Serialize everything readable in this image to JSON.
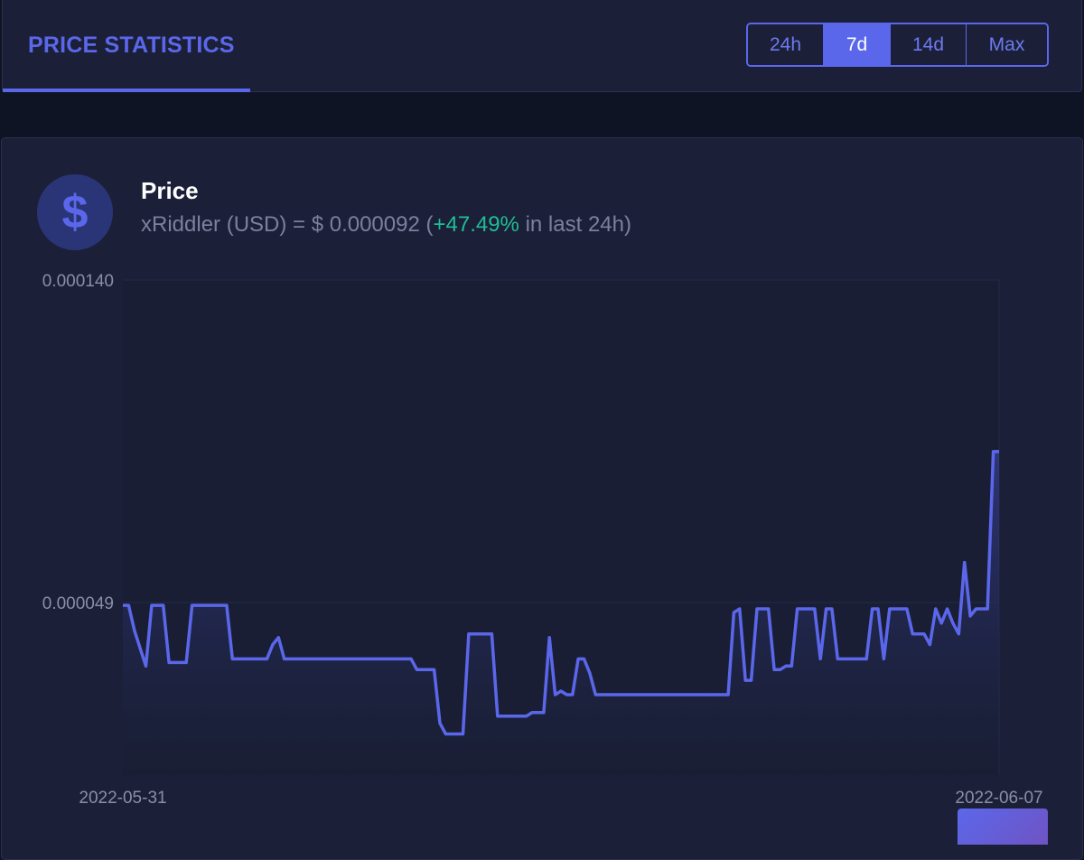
{
  "header": {
    "title": "PRICE STATISTICS",
    "ranges": [
      "24h",
      "7d",
      "14d",
      "Max"
    ],
    "active_range": "7d"
  },
  "price": {
    "icon": "dollar-icon",
    "title": "Price",
    "summary_prefix": "xRiddler (USD) = $ 0.000092 (",
    "change": "+47.49%",
    "summary_suffix": " in last 24h)"
  },
  "colors": {
    "accent": "#5b67ea",
    "positive": "#1fbe94",
    "card": "#1b2038",
    "background": "#0f1424"
  },
  "chart_data": {
    "type": "area",
    "xlabel": "",
    "ylabel": "",
    "x_ticks": [
      "2022-05-31",
      "2022-06-07"
    ],
    "y_ticks": [
      "0.000140",
      "0.000049"
    ],
    "ylim": [
      1.5e-06,
      0.00014
    ],
    "grid": true,
    "series": [
      {
        "values": [
          4.9e-05,
          4.9e-05,
          4.2e-05,
          3.7e-05,
          3.2e-05,
          4.9e-05,
          4.9e-05,
          4.9e-05,
          3.3e-05,
          3.3e-05,
          3.3e-05,
          3.3e-05,
          4.9e-05,
          4.9e-05,
          4.9e-05,
          4.9e-05,
          4.9e-05,
          4.9e-05,
          4.9e-05,
          3.4e-05,
          3.4e-05,
          3.4e-05,
          3.4e-05,
          3.4e-05,
          3.4e-05,
          3.4e-05,
          3.8e-05,
          4e-05,
          3.4e-05,
          3.4e-05,
          3.4e-05,
          3.4e-05,
          3.4e-05,
          3.4e-05,
          3.4e-05,
          3.4e-05,
          3.4e-05,
          3.4e-05,
          3.4e-05,
          3.4e-05,
          3.4e-05,
          3.4e-05,
          3.4e-05,
          3.4e-05,
          3.4e-05,
          3.4e-05,
          3.4e-05,
          3.4e-05,
          3.4e-05,
          3.4e-05,
          3.4e-05,
          3.1e-05,
          3.1e-05,
          3.1e-05,
          3.1e-05,
          1.6e-05,
          1.3e-05,
          1.3e-05,
          1.3e-05,
          1.3e-05,
          4.1e-05,
          4.1e-05,
          4.1e-05,
          4.1e-05,
          4.1e-05,
          1.8e-05,
          1.8e-05,
          1.8e-05,
          1.8e-05,
          1.8e-05,
          1.8e-05,
          1.9e-05,
          1.9e-05,
          1.9e-05,
          4e-05,
          2.4e-05,
          2.5e-05,
          2.4e-05,
          2.4e-05,
          3.4e-05,
          3.4e-05,
          3e-05,
          2.4e-05,
          2.4e-05,
          2.4e-05,
          2.4e-05,
          2.4e-05,
          2.4e-05,
          2.4e-05,
          2.4e-05,
          2.4e-05,
          2.4e-05,
          2.4e-05,
          2.4e-05,
          2.4e-05,
          2.4e-05,
          2.4e-05,
          2.4e-05,
          2.4e-05,
          2.4e-05,
          2.4e-05,
          2.4e-05,
          2.4e-05,
          2.4e-05,
          2.4e-05,
          2.4e-05,
          4.7e-05,
          4.8e-05,
          2.8e-05,
          2.8e-05,
          4.8e-05,
          4.8e-05,
          4.8e-05,
          3.1e-05,
          3.1e-05,
          3.2e-05,
          3.2e-05,
          4.8e-05,
          4.8e-05,
          4.8e-05,
          4.8e-05,
          3.4e-05,
          4.8e-05,
          4.8e-05,
          3.4e-05,
          3.4e-05,
          3.4e-05,
          3.4e-05,
          3.4e-05,
          3.4e-05,
          4.8e-05,
          4.8e-05,
          3.4e-05,
          4.8e-05,
          4.8e-05,
          4.8e-05,
          4.8e-05,
          4.1e-05,
          4.1e-05,
          4.1e-05,
          3.8e-05,
          4.8e-05,
          4.4e-05,
          4.8e-05,
          4.4e-05,
          4.1e-05,
          6.1e-05,
          4.6e-05,
          4.8e-05,
          4.8e-05,
          4.8e-05,
          9.2e-05,
          9.2e-05
        ]
      }
    ]
  }
}
